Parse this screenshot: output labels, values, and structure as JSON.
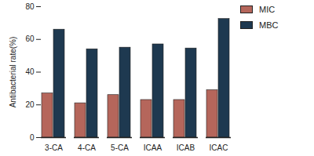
{
  "chart_data": {
    "type": "bar",
    "y_label": "Antibacterial rate(%)",
    "categories": [
      "3-CA",
      "4-CA",
      "5-CA",
      "ICAA",
      "ICAB",
      "ICAC"
    ],
    "series": [
      {
        "name": "MIC",
        "color": "#b5665b",
        "values": [
          27,
          21,
          26,
          23,
          23,
          29
        ]
      },
      {
        "name": "MBC",
        "color": "#1e3950",
        "values": [
          66,
          54,
          55,
          57,
          54.5,
          72.5
        ]
      }
    ],
    "ylim": [
      0,
      80
    ],
    "yticks": [
      0,
      20,
      40,
      60,
      80
    ],
    "grid": false,
    "legend": "top-right"
  }
}
